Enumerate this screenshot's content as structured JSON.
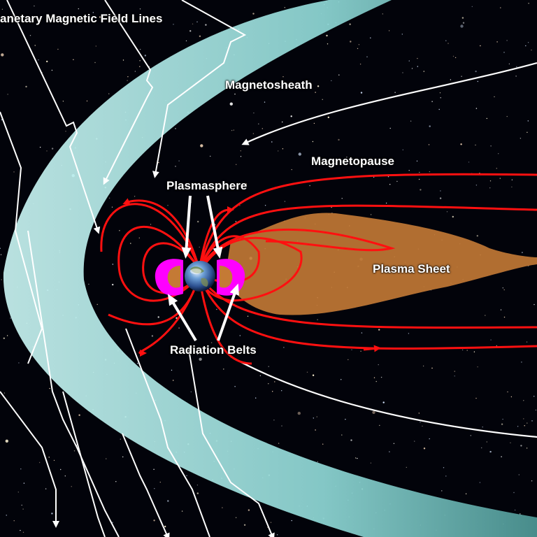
{
  "labels": {
    "imf": "anetary Magnetic Field Lines",
    "magnetosheath": "Magnetosheath",
    "magnetopause": "Magnetopause",
    "plasmasphere": "Plasmasphere",
    "plasma_sheet": "Plasma Sheet",
    "radiation_belts": "Radiation Belts"
  },
  "icons": {
    "earth": "earth-globe",
    "arrows": "white-pointer-arrow"
  },
  "colors": {
    "background": "#02030a",
    "bow_shock": "#9fe3e1",
    "field_lines": "#ffffff",
    "magnetosphere_lines": "#ff1010",
    "plasma_sheet": "#c47a35",
    "radiation_belts": "#ff00ff"
  }
}
